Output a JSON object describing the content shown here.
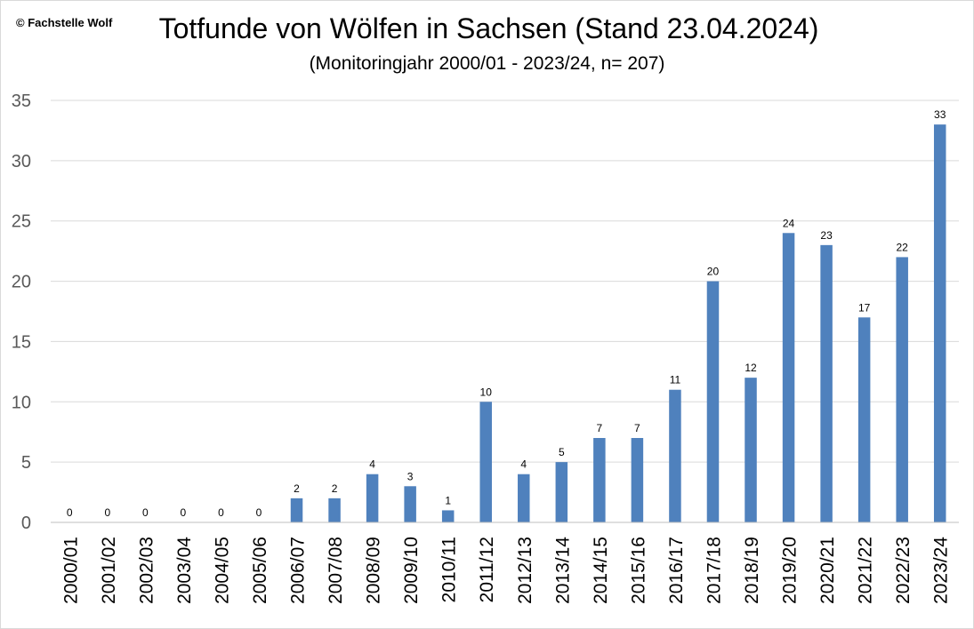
{
  "copyright": "© Fachstelle Wolf",
  "chart_data": {
    "type": "bar",
    "title": "Totfunde von Wölfen in Sachsen (Stand 23.04.2024)",
    "subtitle": "(Monitoringjahr 2000/01 - 2023/24, n= 207)",
    "xlabel": "",
    "ylabel": "",
    "ylim": [
      0,
      35
    ],
    "yticks": [
      0,
      5,
      10,
      15,
      20,
      25,
      30,
      35
    ],
    "grid": true,
    "legend": "none",
    "bar_color": "#4f81bd",
    "categories": [
      "2000/01",
      "2001/02",
      "2002/03",
      "2003/04",
      "2004/05",
      "2005/06",
      "2006/07",
      "2007/08",
      "2008/09",
      "2009/10",
      "2010/11",
      "2011/12",
      "2012/13",
      "2013/14",
      "2014/15",
      "2015/16",
      "2016/17",
      "2017/18",
      "2018/19",
      "2019/20",
      "2020/21",
      "2021/22",
      "2022/23",
      "2023/24"
    ],
    "values": [
      0,
      0,
      0,
      0,
      0,
      0,
      2,
      2,
      4,
      3,
      1,
      10,
      4,
      5,
      7,
      7,
      11,
      20,
      12,
      24,
      23,
      17,
      22,
      33
    ]
  }
}
